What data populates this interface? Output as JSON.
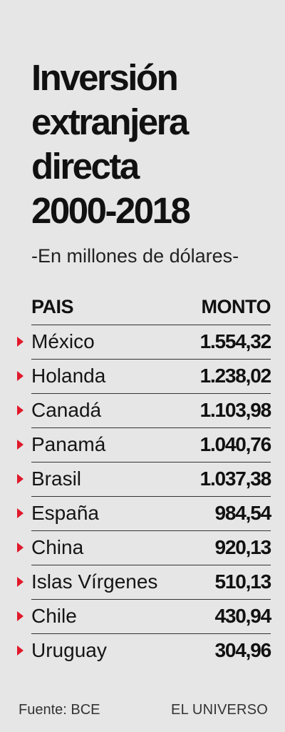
{
  "title_lines": [
    "Inversión",
    "extranjera",
    "directa",
    "2000-2018"
  ],
  "subtitle": "-En millones de dólares-",
  "headers": {
    "country": "PAIS",
    "amount": "MONTO"
  },
  "colors": {
    "background": "#e6e6e6",
    "marker": "#e0192b",
    "text": "#111111"
  },
  "footer": {
    "source": "Fuente: BCE",
    "brand": "EL UNIVERSO"
  },
  "chart_data": {
    "type": "table",
    "title": "Inversión extranjera directa 2000-2018",
    "subtitle": "-En millones de dólares-",
    "columns": [
      "PAIS",
      "MONTO"
    ],
    "rows": [
      {
        "country": "México",
        "amount": "1.554,32",
        "value": 1554.32
      },
      {
        "country": "Holanda",
        "amount": "1.238,02",
        "value": 1238.02
      },
      {
        "country": "Canadá",
        "amount": "1.103,98",
        "value": 1103.98
      },
      {
        "country": "Panamá",
        "amount": "1.040,76",
        "value": 1040.76
      },
      {
        "country": "Brasil",
        "amount": "1.037,38",
        "value": 1037.38
      },
      {
        "country": "España",
        "amount": "984,54",
        "value": 984.54
      },
      {
        "country": "China",
        "amount": "920,13",
        "value": 920.13
      },
      {
        "country": "Islas Vírgenes",
        "amount": "510,13",
        "value": 510.13
      },
      {
        "country": "Chile",
        "amount": "430,94",
        "value": 430.94
      },
      {
        "country": "Uruguay",
        "amount": "304,96",
        "value": 304.96
      }
    ]
  }
}
